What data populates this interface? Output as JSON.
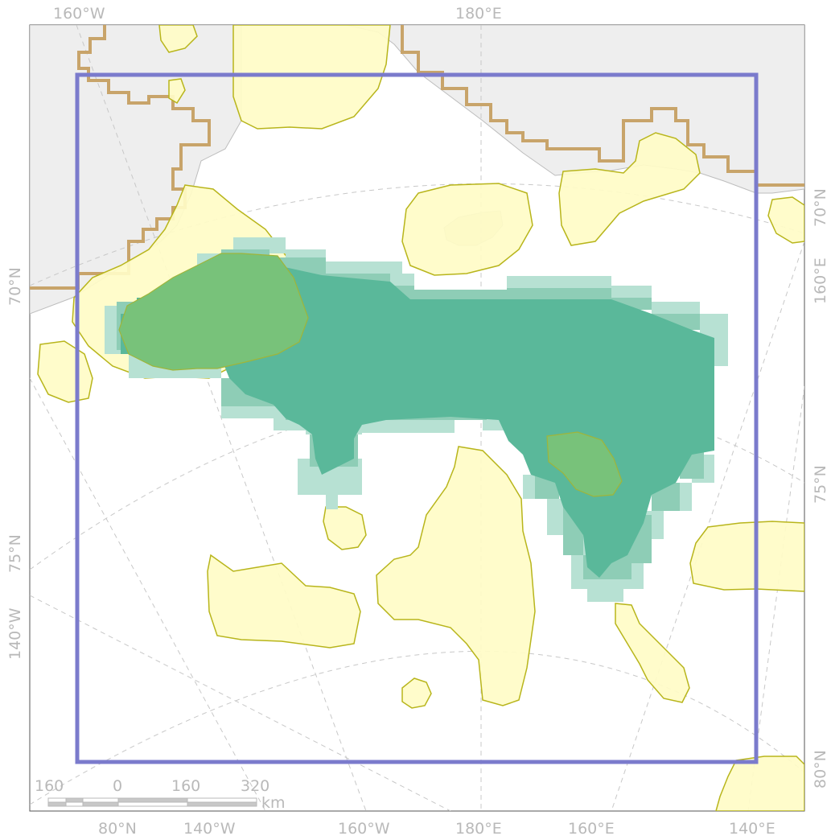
{
  "map": {
    "graticule_labels": {
      "top": [
        "160°W",
        "180°E"
      ],
      "bottom": [
        "80°N",
        "140°W",
        "160°W",
        "180°E",
        "160°E",
        "140°E"
      ],
      "left": [
        "70°N",
        "75°N",
        "140°W"
      ],
      "right": [
        "70°N",
        "160°E",
        "75°N",
        "80°N"
      ]
    },
    "scale_bar": {
      "ticks": [
        "160",
        "0",
        "160",
        "320"
      ],
      "unit": "km"
    },
    "colors": {
      "land": "#eeeeee",
      "coastline": "#bdbdbd",
      "eez_boundary": "#c8a46a",
      "study_area": "#7b7bcc",
      "yellow_fill": "#fffcc7",
      "yellow_stroke": "#b8b51b",
      "green_core": "#5ab89a",
      "green_light": "#b7e1d3",
      "overlap_green": "#78c27a"
    }
  }
}
